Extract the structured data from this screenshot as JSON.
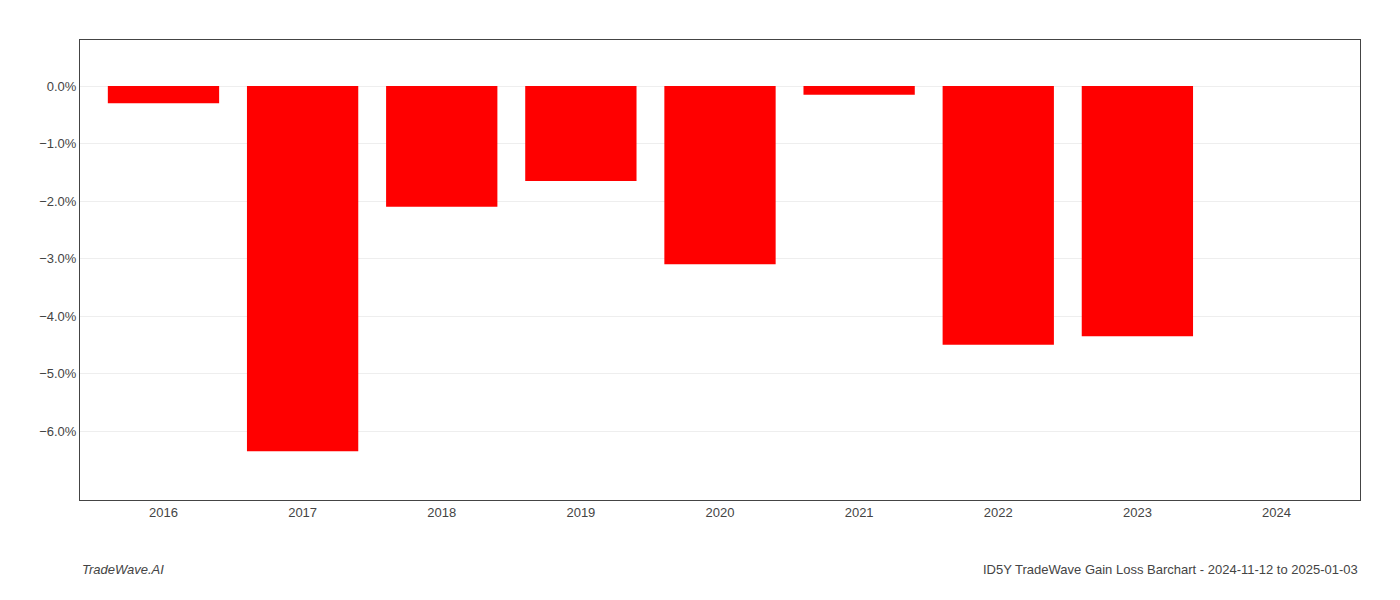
{
  "chart_data": {
    "type": "bar",
    "x": [
      2016,
      2017,
      2018,
      2019,
      2020,
      2021,
      2022,
      2023
    ],
    "values": [
      -0.003,
      -0.0635,
      -0.021,
      -0.0165,
      -0.031,
      -0.0015,
      -0.045,
      -0.0435
    ],
    "color": "#ff0000",
    "xlim": [
      2015.4,
      2024.6
    ],
    "xticks": [
      2016,
      2017,
      2018,
      2019,
      2020,
      2021,
      2022,
      2023,
      2024
    ],
    "ylim": [
      -0.072,
      0.008
    ],
    "yticks": [
      {
        "value": 0.0,
        "label": "0.0%"
      },
      {
        "value": -0.01,
        "label": "−1.0%"
      },
      {
        "value": -0.02,
        "label": "−2.0%"
      },
      {
        "value": -0.03,
        "label": "−3.0%"
      },
      {
        "value": -0.04,
        "label": "−4.0%"
      },
      {
        "value": -0.05,
        "label": "−5.0%"
      },
      {
        "value": -0.06,
        "label": "−6.0%"
      }
    ],
    "grid": true,
    "annotations": [
      "TradeWave.AI",
      "ID5Y TradeWave Gain Loss Barchart - 2024-11-12 to 2025-01-03"
    ]
  }
}
